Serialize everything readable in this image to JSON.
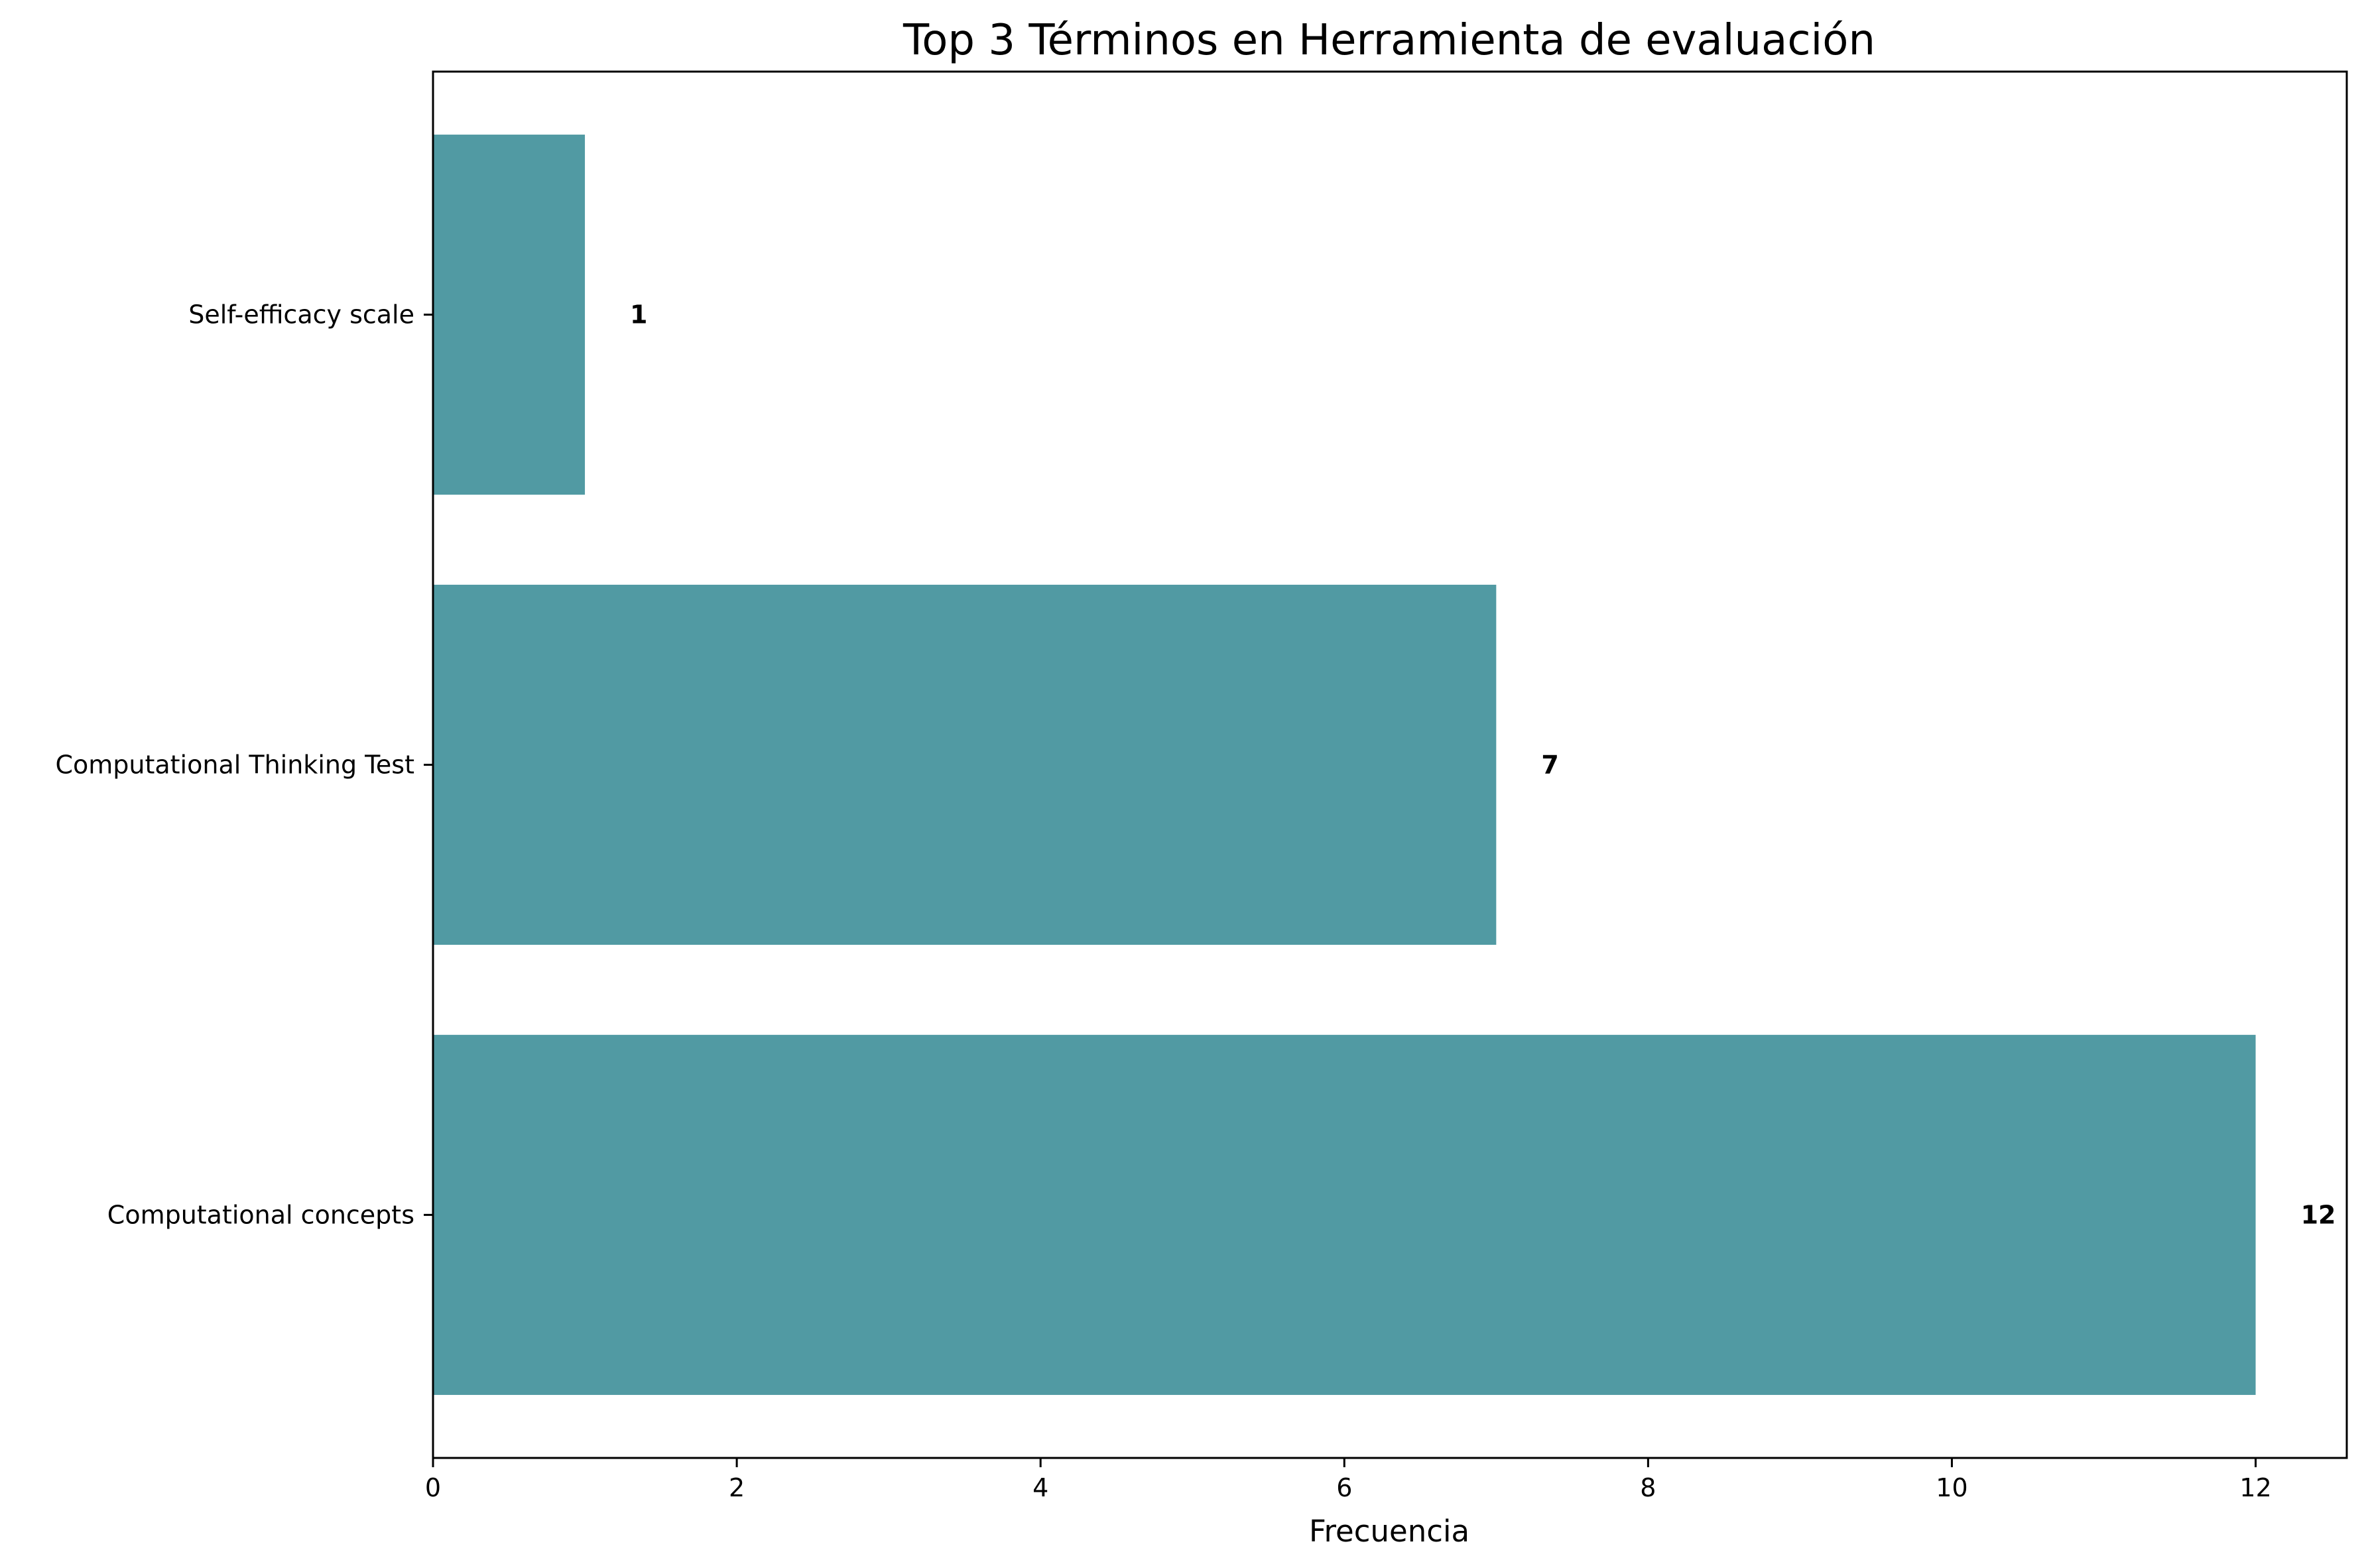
{
  "chart_data": {
    "type": "bar",
    "orientation": "horizontal",
    "title": "Top 3 Términos en Herramienta de evaluación",
    "xlabel": "Frecuencia",
    "ylabel": "",
    "categories": [
      "Computational concepts",
      "Computational Thinking Test",
      "Self-efficacy scale"
    ],
    "values": [
      12,
      7,
      1
    ],
    "data_labels": [
      "12",
      "7",
      "1"
    ],
    "xlim": [
      0,
      12.6
    ],
    "xticks": [
      0,
      2,
      4,
      6,
      8,
      10,
      12
    ],
    "bar_color": "#519aa3",
    "grid": false,
    "legend": "none"
  }
}
